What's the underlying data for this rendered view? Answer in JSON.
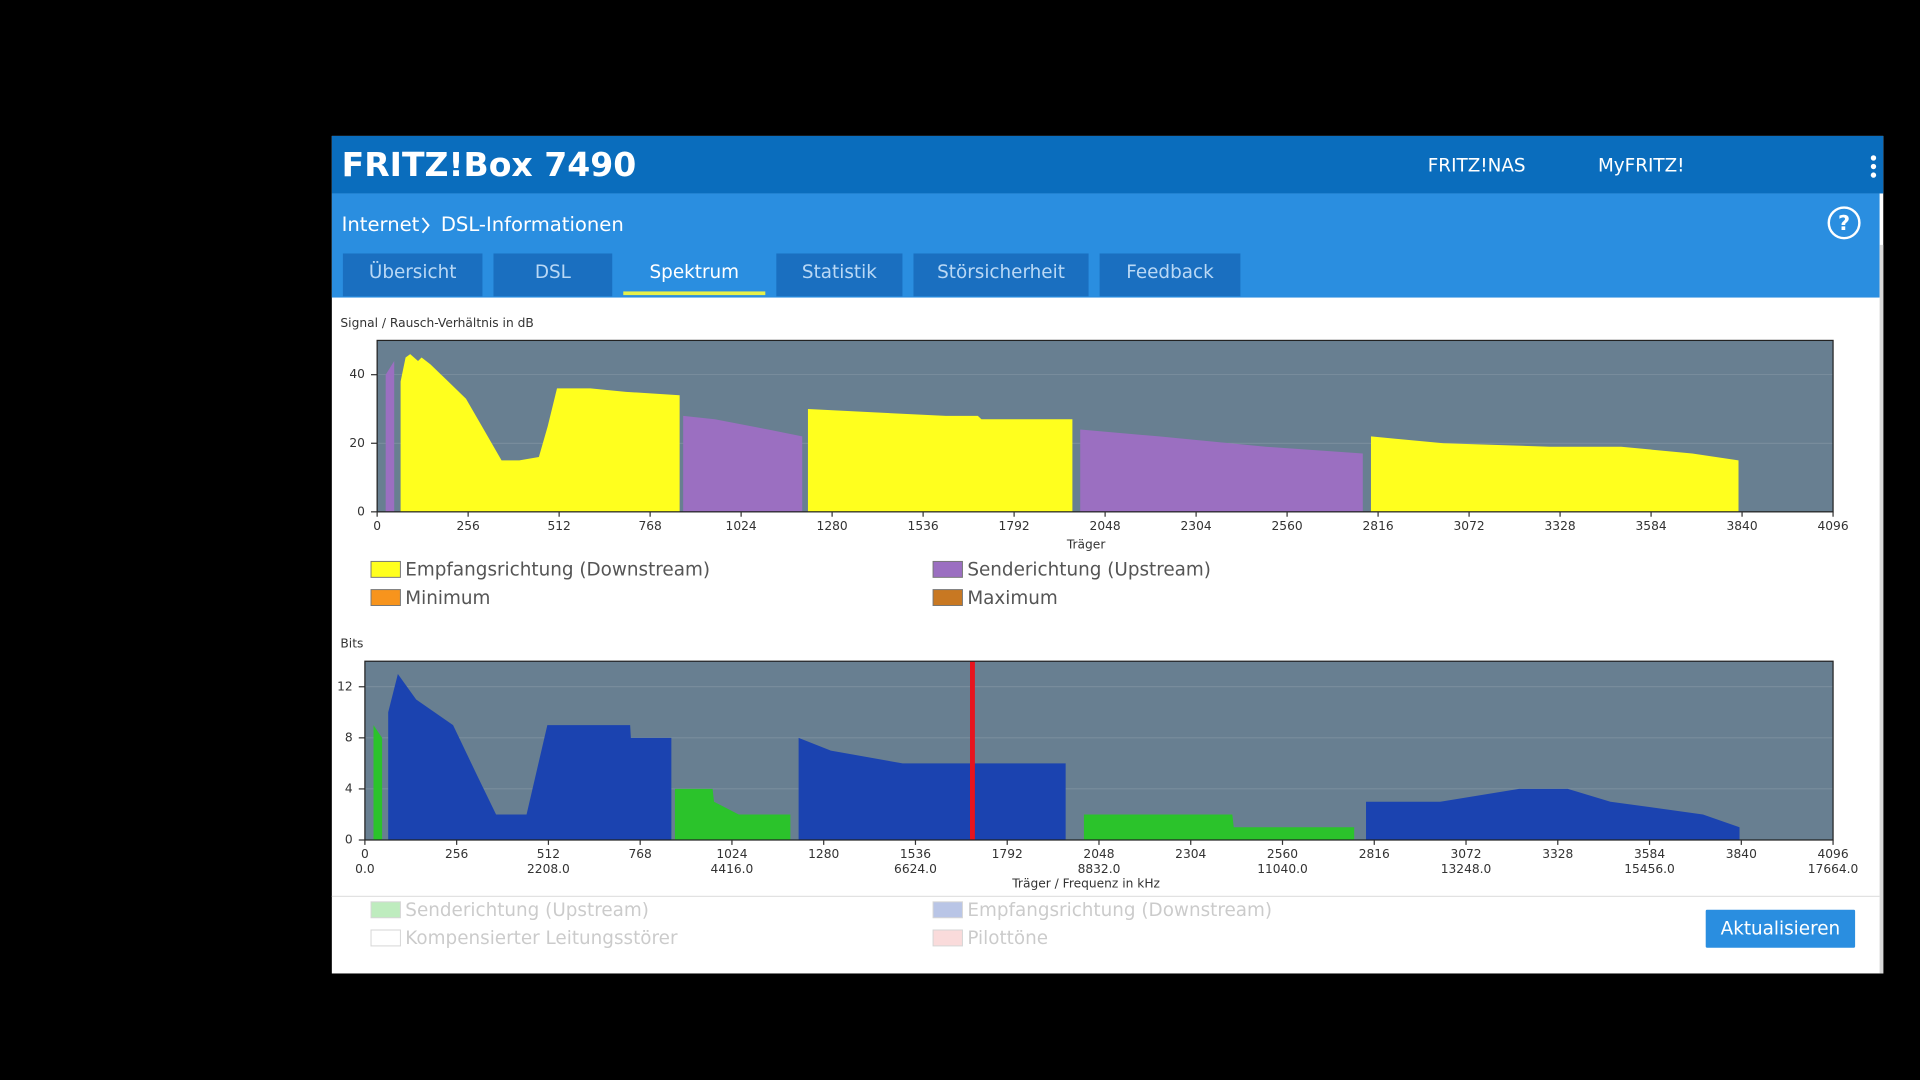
{
  "header": {
    "title": "FRITZ!Box 7490",
    "links": [
      "FRITZ!NAS",
      "MyFRITZ!"
    ],
    "help": "?"
  },
  "breadcrumb": [
    "Internet",
    "DSL-Informationen"
  ],
  "tabs": [
    "Übersicht",
    "DSL",
    "Spektrum",
    "Statistik",
    "Störsicherheit",
    "Feedback"
  ],
  "active_tab": 2,
  "button": "Aktualisieren",
  "chart_data": [
    {
      "type": "area",
      "y_label": "Signal / Rausch-Verhältnis in dB",
      "x_label": "Träger",
      "x": [
        24,
        48,
        66,
        80,
        93,
        115,
        125,
        150,
        200,
        250,
        300,
        350,
        400,
        455,
        480,
        506,
        600,
        700,
        851,
        861,
        950,
        1100,
        1196,
        1212,
        1400,
        1600,
        1690,
        1700,
        1956,
        1978,
        2200,
        2500,
        2773,
        2796,
        3000,
        3300,
        3500,
        3700,
        3830
      ],
      "xlim": [
        0,
        4096
      ],
      "xticks": [
        0,
        256,
        512,
        768,
        1024,
        1280,
        1536,
        1792,
        2048,
        2304,
        2560,
        2816,
        3072,
        3328,
        3584,
        3840,
        4096
      ],
      "ylim": [
        0,
        50
      ],
      "yticks": [
        0,
        20,
        40
      ],
      "grid": true,
      "series": [
        {
          "name": "Empfangsrichtung (Downstream)",
          "color": "#ffff1e",
          "values": [
            null,
            null,
            38,
            45,
            46,
            44,
            45,
            43,
            38,
            33,
            24,
            15,
            15,
            16,
            25,
            36,
            36,
            35,
            34,
            null,
            null,
            null,
            null,
            30,
            29,
            28,
            28,
            27,
            27,
            null,
            null,
            null,
            null,
            22,
            20,
            19,
            19,
            17,
            15
          ]
        },
        {
          "name": "Senderichtung (Upstream)",
          "color": "#9b6fc1",
          "values": [
            40,
            44,
            null,
            null,
            null,
            null,
            null,
            null,
            null,
            null,
            null,
            null,
            null,
            null,
            null,
            null,
            null,
            null,
            null,
            28,
            27,
            24,
            22,
            null,
            null,
            null,
            null,
            null,
            null,
            24,
            22,
            19,
            17,
            null,
            null,
            null,
            null,
            null,
            null
          ]
        },
        {
          "name": "Minimum",
          "color": "#f7941d"
        },
        {
          "name": "Maximum",
          "color": "#c87822"
        }
      ]
    },
    {
      "type": "area",
      "y_label": "Bits",
      "x_label": "Träger / Frequenz in kHz",
      "x": [
        24,
        48,
        65,
        92,
        143,
        246,
        314,
        366,
        451,
        509,
        740,
        742,
        855,
        865,
        970,
        974,
        1043,
        1187,
        1210,
        1300,
        1500,
        1682,
        1716,
        1955,
        2006,
        2420,
        2424,
        2760,
        2793,
        3000,
        3220,
        3356,
        3475,
        3733,
        3835
      ],
      "xlim": [
        0,
        4096
      ],
      "xticks": [
        0,
        256,
        512,
        768,
        1024,
        1280,
        1536,
        1792,
        2048,
        2304,
        2560,
        2816,
        3072,
        3328,
        3584,
        3840,
        4096
      ],
      "x2lim": [
        0,
        17664
      ],
      "x2ticks": [
        {
          "value": 0,
          "label": "0.0"
        },
        {
          "value": 2208,
          "label": "2208.0"
        },
        {
          "value": 4416,
          "label": "4416.0"
        },
        {
          "value": 6624,
          "label": "6624.0"
        },
        {
          "value": 8832,
          "label": "8832.0"
        },
        {
          "value": 11040,
          "label": "11040.0"
        },
        {
          "value": 13248,
          "label": "13248.0"
        },
        {
          "value": 15456,
          "label": "15456.0"
        },
        {
          "value": 17664,
          "label": "17664.0"
        }
      ],
      "ylim": [
        0,
        14
      ],
      "yticks": [
        0,
        4,
        8,
        12
      ],
      "grid": true,
      "markers": [
        1695
      ],
      "marker_color": "#e8141e",
      "series": [
        {
          "name": "Senderichtung (Upstream)",
          "color": "#2bc32b",
          "values": [
            9,
            8,
            null,
            null,
            null,
            null,
            null,
            null,
            null,
            null,
            null,
            null,
            null,
            4,
            4,
            3,
            2,
            2,
            null,
            null,
            null,
            null,
            null,
            null,
            2,
            2,
            1,
            1,
            null,
            null,
            null,
            null,
            null,
            null,
            null
          ]
        },
        {
          "name": "Empfangsrichtung (Downstream)",
          "color": "#1b43b0",
          "values": [
            null,
            null,
            10,
            13,
            11,
            9,
            5,
            2,
            2,
            9,
            9,
            8,
            8,
            null,
            null,
            null,
            null,
            null,
            8,
            7,
            6,
            6,
            6,
            6,
            null,
            null,
            null,
            null,
            3,
            3,
            4,
            4,
            3,
            2,
            1
          ]
        },
        {
          "name": "Kompensierter Leitungsstörer",
          "color": "#ffffff"
        },
        {
          "name": "Pilottöne",
          "color": "#f08a8a"
        }
      ]
    }
  ]
}
